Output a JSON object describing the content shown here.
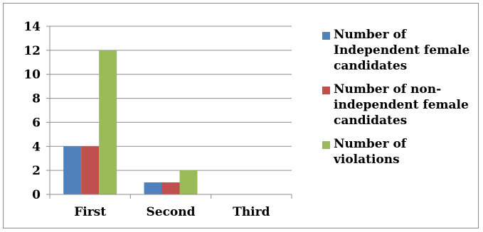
{
  "chart_data": {
    "type": "bar",
    "categories": [
      "First",
      "Second",
      "Third"
    ],
    "series": [
      {
        "name": "Number of Independent female candidates",
        "legend_text": "Number of\nIndependent female\ncandidates",
        "color": "#4f81bd",
        "values": [
          4,
          1,
          0
        ]
      },
      {
        "name": "Number of non-independent female candidates",
        "legend_text": "Number of non-\nindependent female\ncandidates",
        "color": "#c0504d",
        "values": [
          4,
          1,
          0
        ]
      },
      {
        "name": "Number of violations",
        "legend_text": "Number of\nviolations",
        "color": "#9bbb59",
        "values": [
          12,
          2,
          0
        ]
      }
    ],
    "ylim": [
      0,
      14
    ],
    "yticks": [
      "0",
      "2",
      "4",
      "6",
      "8",
      "10",
      "12",
      "14"
    ],
    "title": "",
    "xlabel": "",
    "ylabel": "",
    "grid": true,
    "legend_position": "right"
  }
}
